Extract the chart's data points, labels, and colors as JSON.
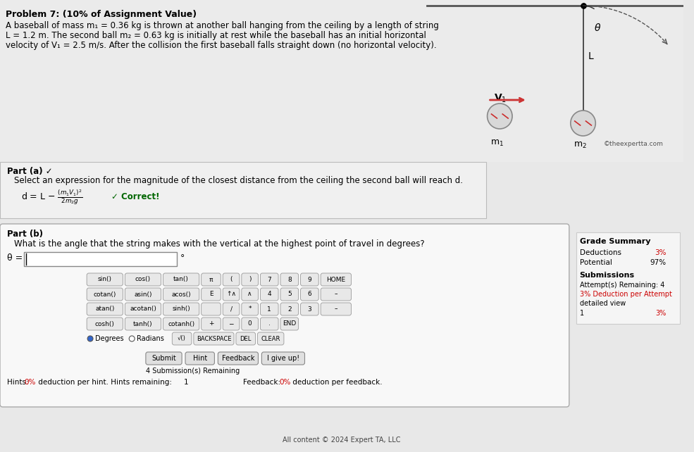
{
  "title": "Problem 7: (10% of Assignment Value)",
  "problem_text": "A baseball of mass m₁ = 0.36 kg is thrown at another ball hanging from the ceiling by a length of string\nL = 1.2 m. The second ball m₂ = 0.63 kg is initially at rest while the baseball has an initial horizontal\nvelocity of V₁ = 2.5 m/s. After the collision the first baseball falls straight down (no horizontal velocity).",
  "part_a_label": "Part (a) ✓",
  "part_a_text": "Select an expression for the magnitude of the closest distance from the ceiling the second ball will reach d.",
  "part_a_expr": "d = L −  (m₁V₁)² / (2m₂g)",
  "part_a_correct": "✓ Correct!",
  "part_b_label": "Part (b)",
  "part_b_text": "What is the angle that the string makes with the vertical at the highest point of travel in degrees?",
  "theta_label": "θ =",
  "degrees_unit": "°",
  "grade_summary_title": "Grade Summary",
  "deductions_label": "Deductions",
  "deductions_value": "3%",
  "potential_label": "Potential",
  "potential_value": "97%",
  "submissions_title": "Submissions",
  "attempts_remaining": "Attempt(s) Remaining: 4",
  "deduction_per_attempt": "3% Deduction per Attempt",
  "detailed_view": "detailed view",
  "attempt_1": "1",
  "attempt_1_val": "3%",
  "buttons_row1": [
    "sin()",
    "cos()",
    "tan()",
    "π",
    "(",
    ")",
    "7",
    "8",
    "9",
    "HOME"
  ],
  "buttons_row2": [
    "cotan()",
    "asin()",
    "acos()",
    "E",
    "↑∧",
    "∧",
    "4",
    "5",
    "6",
    "–"
  ],
  "buttons_row3": [
    "atan()",
    "acotan()",
    "sinh()",
    "",
    "/",
    "*",
    "1",
    "2",
    "3",
    "–"
  ],
  "buttons_row4": [
    "cosh()",
    "tanh()",
    "cotanh()",
    "+",
    "−",
    "0",
    ".",
    "END"
  ],
  "buttons_row5": [
    "Degrees",
    "Radians",
    "√()",
    "BACKSPACE",
    "DEL",
    "CLEAR"
  ],
  "submit_btn": "Submit",
  "hint_btn": "Hint",
  "feedback_btn": "Feedback",
  "giveup_btn": "I give up!",
  "submissions_remaining": "4 Submission(s) Remaining",
  "hints_text": "Hints: 0% deduction per hint. Hints remaining: 1",
  "feedback_text": "Feedback: 0% deduction per feedback.",
  "copyright": "All content © 2024 Expert TA, LLC",
  "bg_color": "#e8e8e8",
  "panel_color": "#f5f5f5",
  "part_b_panel_color": "#ffffff",
  "border_color": "#cccccc",
  "button_color": "#e0e0e0",
  "button_border": "#aaaaaa",
  "grade_panel_color": "#f5f5f5",
  "correct_color": "#006600",
  "red_color": "#cc0000",
  "title_fontsize": 9,
  "text_fontsize": 8.5,
  "small_fontsize": 7.5
}
